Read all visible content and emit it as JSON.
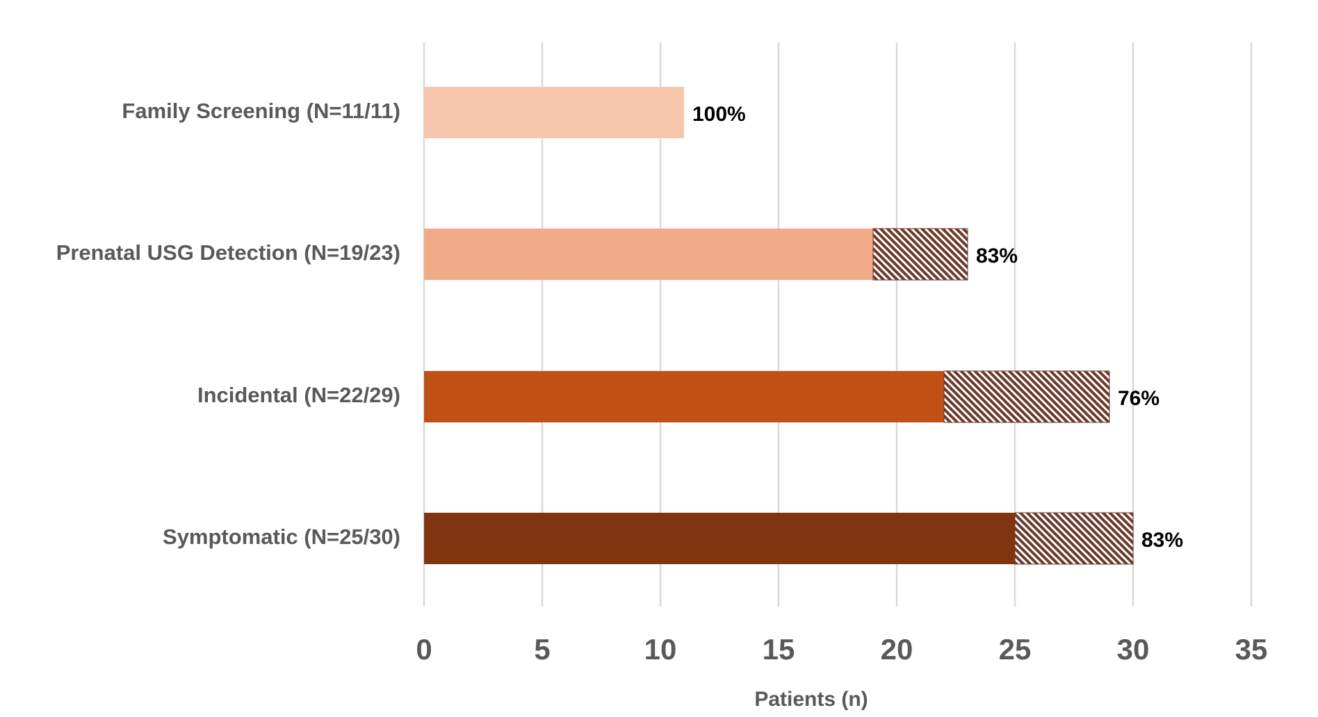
{
  "chart_data": {
    "type": "stacked-barh",
    "categories": [
      "Family Screening (N=11/11)",
      "Prenatal USG Detection (N=19/23)",
      "Incidental (N=22/29)",
      "Symptomatic (N=25/30)"
    ],
    "series": [
      {
        "colors": [
          "#f6c6ad",
          "#f1aa87",
          "#c05016",
          "#80350e"
        ],
        "values": [
          11,
          19,
          22,
          25
        ]
      },
      {
        "color": "#6b3a2a",
        "pattern": "hatch",
        "values": [
          0,
          4,
          7,
          5
        ]
      }
    ],
    "annotations": [
      "100%",
      "83%",
      "76%",
      "83%"
    ],
    "xlabel": "Patients (n)",
    "xlim": [
      0,
      35
    ],
    "xticks": [
      0,
      5,
      10,
      15,
      20,
      25,
      30,
      35
    ],
    "grid": true
  }
}
